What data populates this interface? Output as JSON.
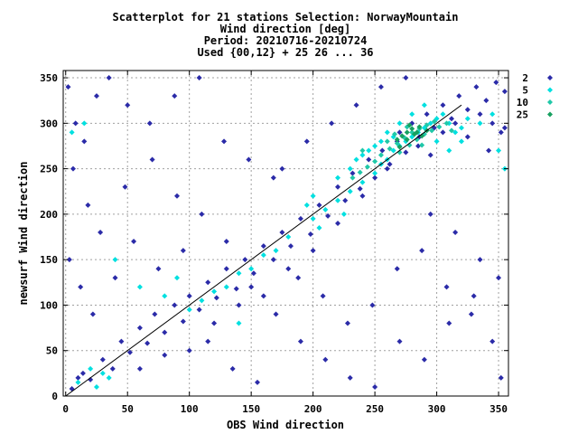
{
  "chart_data": {
    "type": "scatter",
    "title_lines": [
      "Scatterplot for   21 stations Selection: NorwayMountain",
      "Wind direction [deg]",
      "Period: 20210716-20210724",
      "Used {00,12} + 25 26 ... 36"
    ],
    "xlabel": "OBS Wind direction",
    "ylabel": "newsurf Wind direction",
    "xlim": [
      -2,
      358
    ],
    "ylim": [
      0,
      358
    ],
    "xticks": [
      0,
      50,
      100,
      150,
      200,
      250,
      300,
      350
    ],
    "yticks": [
      0,
      50,
      100,
      150,
      200,
      250,
      300,
      350
    ],
    "grid": true,
    "legend_position": "right",
    "diagonal_line": {
      "from": [
        0,
        0
      ],
      "to": [
        320,
        320
      ]
    },
    "series": [
      {
        "name": "2",
        "color": "#2b2ba8",
        "points": [
          [
            5,
            8
          ],
          [
            10,
            20
          ],
          [
            14,
            25
          ],
          [
            20,
            18
          ],
          [
            30,
            40
          ],
          [
            38,
            30
          ],
          [
            45,
            60
          ],
          [
            52,
            48
          ],
          [
            60,
            75
          ],
          [
            66,
            58
          ],
          [
            72,
            90
          ],
          [
            80,
            70
          ],
          [
            88,
            100
          ],
          [
            95,
            82
          ],
          [
            100,
            110
          ],
          [
            108,
            95
          ],
          [
            115,
            125
          ],
          [
            122,
            108
          ],
          [
            130,
            140
          ],
          [
            138,
            118
          ],
          [
            145,
            150
          ],
          [
            152,
            135
          ],
          [
            160,
            165
          ],
          [
            168,
            150
          ],
          [
            175,
            180
          ],
          [
            182,
            165
          ],
          [
            190,
            195
          ],
          [
            198,
            178
          ],
          [
            205,
            210
          ],
          [
            212,
            198
          ],
          [
            220,
            230
          ],
          [
            226,
            215
          ],
          [
            232,
            245
          ],
          [
            238,
            228
          ],
          [
            245,
            260
          ],
          [
            250,
            240
          ],
          [
            256,
            270
          ],
          [
            262,
            255
          ],
          [
            268,
            280
          ],
          [
            275,
            268
          ],
          [
            280,
            300
          ],
          [
            286,
            285
          ],
          [
            292,
            310
          ],
          [
            298,
            295
          ],
          [
            305,
            320
          ],
          [
            312,
            305
          ],
          [
            318,
            330
          ],
          [
            325,
            315
          ],
          [
            332,
            340
          ],
          [
            340,
            325
          ],
          [
            348,
            345
          ],
          [
            355,
            335
          ],
          [
            2,
            340
          ],
          [
            8,
            300
          ],
          [
            15,
            280
          ],
          [
            25,
            330
          ],
          [
            35,
            350
          ],
          [
            50,
            320
          ],
          [
            70,
            260
          ],
          [
            90,
            220
          ],
          [
            110,
            200
          ],
          [
            130,
            170
          ],
          [
            150,
            120
          ],
          [
            170,
            90
          ],
          [
            190,
            60
          ],
          [
            210,
            40
          ],
          [
            230,
            20
          ],
          [
            250,
            10
          ],
          [
            270,
            60
          ],
          [
            290,
            40
          ],
          [
            310,
            80
          ],
          [
            330,
            110
          ],
          [
            345,
            60
          ],
          [
            352,
            20
          ],
          [
            3,
            150
          ],
          [
            12,
            120
          ],
          [
            22,
            90
          ],
          [
            40,
            130
          ],
          [
            55,
            170
          ],
          [
            75,
            140
          ],
          [
            95,
            160
          ],
          [
            115,
            60
          ],
          [
            135,
            30
          ],
          [
            155,
            15
          ],
          [
            175,
            250
          ],
          [
            195,
            280
          ],
          [
            215,
            300
          ],
          [
            235,
            320
          ],
          [
            255,
            340
          ],
          [
            275,
            350
          ],
          [
            295,
            200
          ],
          [
            315,
            180
          ],
          [
            335,
            150
          ],
          [
            350,
            130
          ],
          [
            6,
            250
          ],
          [
            18,
            210
          ],
          [
            28,
            180
          ],
          [
            48,
            230
          ],
          [
            68,
            300
          ],
          [
            88,
            330
          ],
          [
            108,
            350
          ],
          [
            128,
            280
          ],
          [
            148,
            260
          ],
          [
            168,
            240
          ],
          [
            188,
            130
          ],
          [
            208,
            110
          ],
          [
            228,
            80
          ],
          [
            248,
            100
          ],
          [
            268,
            140
          ],
          [
            288,
            160
          ],
          [
            308,
            120
          ],
          [
            328,
            90
          ],
          [
            342,
            270
          ],
          [
            355,
            295
          ],
          [
            60,
            30
          ],
          [
            80,
            45
          ],
          [
            100,
            50
          ],
          [
            120,
            80
          ],
          [
            140,
            100
          ],
          [
            160,
            110
          ],
          [
            180,
            140
          ],
          [
            200,
            160
          ],
          [
            220,
            190
          ],
          [
            240,
            220
          ],
          [
            260,
            250
          ],
          [
            270,
            290
          ],
          [
            285,
            275
          ],
          [
            295,
            265
          ],
          [
            305,
            290
          ],
          [
            315,
            300
          ],
          [
            325,
            285
          ],
          [
            335,
            310
          ],
          [
            345,
            300
          ],
          [
            352,
            290
          ]
        ]
      },
      {
        "name": "5",
        "color": "#00e0e0",
        "points": [
          [
            10,
            15
          ],
          [
            20,
            30
          ],
          [
            30,
            25
          ],
          [
            100,
            95
          ],
          [
            110,
            105
          ],
          [
            120,
            115
          ],
          [
            130,
            120
          ],
          [
            140,
            135
          ],
          [
            150,
            140
          ],
          [
            160,
            155
          ],
          [
            170,
            160
          ],
          [
            180,
            175
          ],
          [
            200,
            195
          ],
          [
            210,
            205
          ],
          [
            220,
            215
          ],
          [
            230,
            225
          ],
          [
            240,
            235
          ],
          [
            250,
            245
          ],
          [
            255,
            255
          ],
          [
            260,
            260
          ],
          [
            265,
            270
          ],
          [
            270,
            275
          ],
          [
            275,
            280
          ],
          [
            280,
            285
          ],
          [
            285,
            290
          ],
          [
            290,
            295
          ],
          [
            295,
            300
          ],
          [
            300,
            305
          ],
          [
            305,
            310
          ],
          [
            310,
            300
          ],
          [
            315,
            290
          ],
          [
            320,
            295
          ],
          [
            325,
            305
          ],
          [
            335,
            300
          ],
          [
            345,
            310
          ],
          [
            240,
            265
          ],
          [
            250,
            275
          ],
          [
            260,
            290
          ],
          [
            270,
            300
          ],
          [
            280,
            310
          ],
          [
            290,
            320
          ],
          [
            300,
            280
          ],
          [
            310,
            270
          ],
          [
            320,
            280
          ],
          [
            230,
            250
          ],
          [
            235,
            260
          ],
          [
            245,
            270
          ],
          [
            255,
            280
          ],
          [
            265,
            285
          ],
          [
            5,
            290
          ],
          [
            15,
            300
          ],
          [
            350,
            270
          ],
          [
            355,
            250
          ],
          [
            25,
            10
          ],
          [
            35,
            20
          ],
          [
            40,
            150
          ],
          [
            60,
            120
          ],
          [
            80,
            110
          ],
          [
            90,
            130
          ],
          [
            140,
            80
          ],
          [
            200,
            220
          ],
          [
            220,
            240
          ],
          [
            225,
            200
          ],
          [
            205,
            185
          ],
          [
            195,
            210
          ]
        ]
      },
      {
        "name": "10",
        "color": "#20c8a8",
        "points": [
          [
            255,
            265
          ],
          [
            262,
            272
          ],
          [
            268,
            278
          ],
          [
            274,
            284
          ],
          [
            280,
            290
          ],
          [
            286,
            294
          ],
          [
            292,
            298
          ],
          [
            298,
            302
          ],
          [
            270,
            268
          ],
          [
            278,
            276
          ],
          [
            284,
            282
          ],
          [
            290,
            288
          ],
          [
            296,
            292
          ],
          [
            302,
            296
          ],
          [
            260,
            280
          ],
          [
            266,
            288
          ],
          [
            276,
            296
          ],
          [
            250,
            258
          ],
          [
            244,
            252
          ],
          [
            238,
            246
          ],
          [
            232,
            240
          ],
          [
            308,
            300
          ],
          [
            312,
            292
          ],
          [
            240,
            270
          ],
          [
            288,
            276
          ]
        ]
      },
      {
        "name": "25",
        "color": "#18a060",
        "points": [
          [
            268,
            282
          ],
          [
            272,
            286
          ],
          [
            276,
            290
          ],
          [
            280,
            294
          ],
          [
            284,
            290
          ],
          [
            288,
            286
          ],
          [
            292,
            292
          ],
          [
            276,
            282
          ],
          [
            282,
            288
          ],
          [
            270,
            274
          ],
          [
            286,
            296
          ],
          [
            278,
            298
          ]
        ]
      }
    ]
  }
}
